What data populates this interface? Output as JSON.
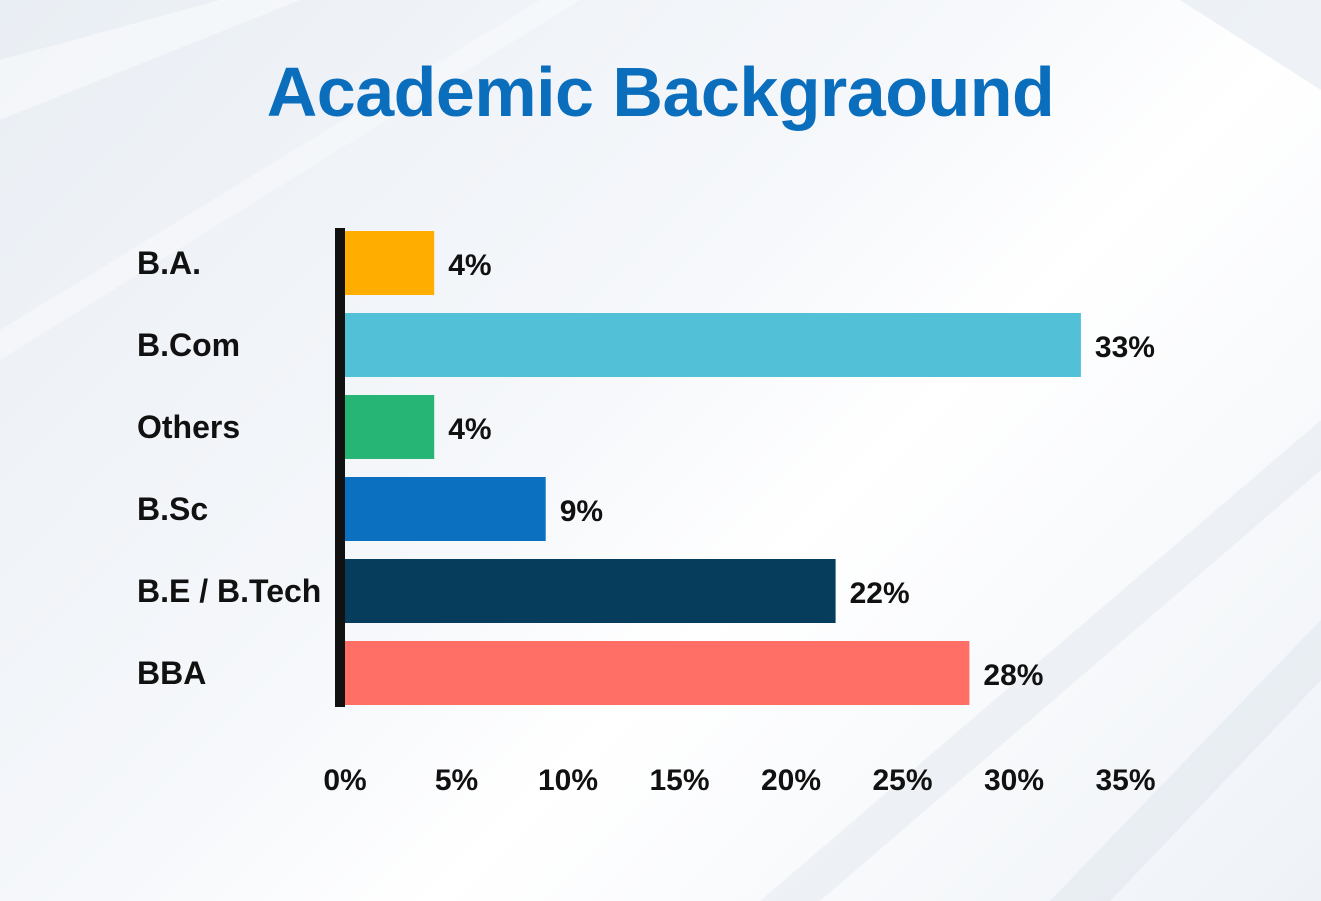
{
  "chart_data": {
    "type": "bar",
    "orientation": "horizontal",
    "title": "Academic Backgraound",
    "categories": [
      "B.A.",
      "B.Com",
      "Others",
      "B.Sc",
      "B.E / B.Tech",
      "BBA"
    ],
    "values": [
      4,
      33,
      4,
      9,
      22,
      28
    ],
    "value_labels": [
      "4%",
      "33%",
      "4%",
      "9%",
      "22%",
      "28%"
    ],
    "colors": [
      "#ffae00",
      "#52c1d8",
      "#26b574",
      "#0a70bf",
      "#063d5c",
      "#ff6f66"
    ],
    "xlim": [
      0,
      35
    ],
    "x_ticks": [
      0,
      5,
      10,
      15,
      20,
      25,
      30,
      35
    ],
    "x_tick_labels": [
      "0%",
      "5%",
      "10%",
      "15%",
      "20%",
      "25%",
      "30%",
      "35%"
    ],
    "xlabel": "",
    "ylabel": "",
    "grid": false,
    "legend": "none",
    "axis_color": "#111111",
    "title_color": "#0a6ebd"
  }
}
